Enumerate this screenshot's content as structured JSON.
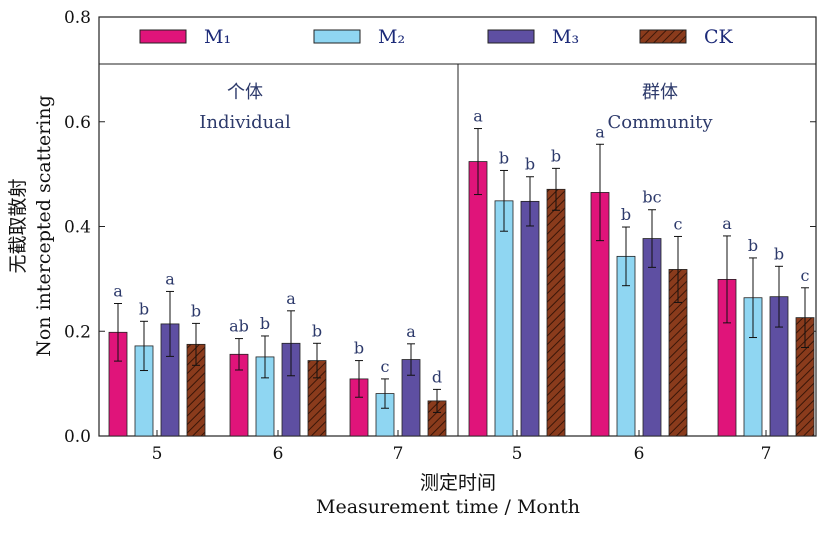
{
  "chart_data": {
    "type": "bar",
    "ylabel_zh": "无截取散射",
    "ylabel_en": "Non intercepted scattering",
    "xlabel_zh": "测定时间",
    "xlabel_en": "Measurement time / Month",
    "ylim": [
      0,
      0.8
    ],
    "yticks": [
      "0.0",
      "0.2",
      "0.4",
      "0.6",
      "0.8"
    ],
    "legend_position": "top",
    "series": [
      {
        "name": "M₁",
        "color": "#e0147a",
        "pattern": "solid"
      },
      {
        "name": "M₂",
        "color": "#8fd6f2",
        "pattern": "solid"
      },
      {
        "name": "M₃",
        "color": "#5e4fa2",
        "pattern": "solid"
      },
      {
        "name": "CK",
        "color": "#8a3b1c",
        "pattern": "hatch"
      }
    ],
    "panels": [
      {
        "label_zh": "个体",
        "label_en": "Individual",
        "groups": [
          {
            "month": "5",
            "values": [
              0.198,
              0.172,
              0.214,
              0.175
            ],
            "errors": [
              0.055,
              0.047,
              0.062,
              0.04
            ],
            "letters": [
              "a",
              "b",
              "a",
              "b"
            ]
          },
          {
            "month": "6",
            "values": [
              0.156,
              0.151,
              0.177,
              0.144
            ],
            "errors": [
              0.03,
              0.04,
              0.062,
              0.033
            ],
            "letters": [
              "ab",
              "b",
              "a",
              "b"
            ]
          },
          {
            "month": "7",
            "values": [
              0.109,
              0.081,
              0.146,
              0.067
            ],
            "errors": [
              0.035,
              0.028,
              0.03,
              0.022
            ],
            "letters": [
              "b",
              "c",
              "a",
              "d"
            ]
          }
        ]
      },
      {
        "label_zh": "群体",
        "label_en": "Community",
        "groups": [
          {
            "month": "5",
            "values": [
              0.524,
              0.449,
              0.448,
              0.471
            ],
            "errors": [
              0.063,
              0.058,
              0.047,
              0.04
            ],
            "letters": [
              "a",
              "b",
              "b",
              "b"
            ]
          },
          {
            "month": "6",
            "values": [
              0.465,
              0.343,
              0.377,
              0.318
            ],
            "errors": [
              0.092,
              0.056,
              0.055,
              0.063
            ],
            "letters": [
              "a",
              "b",
              "bc",
              "c"
            ]
          },
          {
            "month": "7",
            "values": [
              0.299,
              0.264,
              0.266,
              0.226
            ],
            "errors": [
              0.083,
              0.076,
              0.058,
              0.057
            ],
            "letters": [
              "a",
              "b",
              "b",
              "c"
            ]
          }
        ]
      }
    ]
  }
}
